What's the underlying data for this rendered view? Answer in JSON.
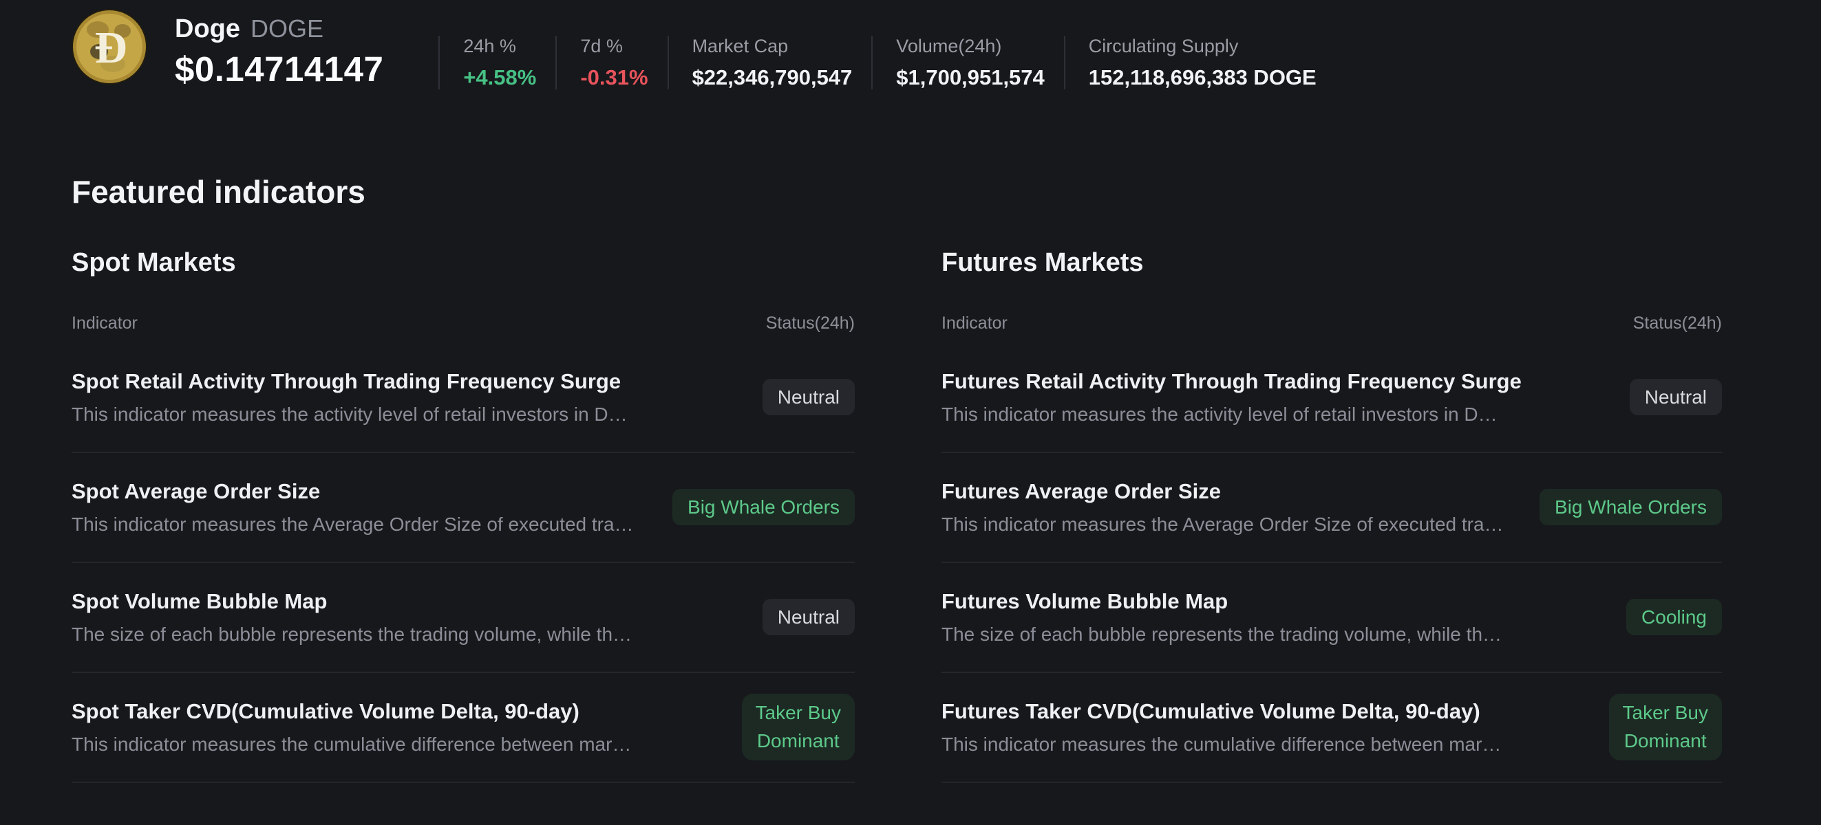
{
  "colors": {
    "background": "#17181c",
    "positive_green": "#47c185",
    "negative_red": "#e8545c",
    "badge_positive_text": "#5dc98a",
    "badge_positive_bg": "#1c2a23",
    "badge_neutral_text": "#d9dadd",
    "badge_neutral_bg": "#26272d",
    "doge_gold": "#c2a23c"
  },
  "header": {
    "coin_name": "Doge",
    "coin_symbol": "DOGE",
    "price": "$0.14714147",
    "logo_icon": "dogecoin-icon",
    "stats": [
      {
        "label": "24h %",
        "value": "+4.58%",
        "direction": "up"
      },
      {
        "label": "7d %",
        "value": "-0.31%",
        "direction": "down"
      },
      {
        "label": "Market Cap",
        "value": "$22,346,790,547",
        "direction": "none"
      },
      {
        "label": "Volume(24h)",
        "value": "$1,700,951,574",
        "direction": "none"
      },
      {
        "label": "Circulating Supply",
        "value": "152,118,696,383 DOGE",
        "direction": "none"
      }
    ]
  },
  "section_title": "Featured indicators",
  "tables": [
    {
      "title": "Spot Markets",
      "col_indicator": "Indicator",
      "col_status": "Status(24h)",
      "rows": [
        {
          "title": "Spot Retail Activity Through Trading Frequency Surge",
          "description": "This indicator measures the activity level of retail investors in D…",
          "status_lines": [
            "Neutral"
          ],
          "status_type": "neutral"
        },
        {
          "title": "Spot Average Order Size",
          "description": "This indicator measures the Average Order Size of executed tra…",
          "status_lines": [
            "Big Whale Orders"
          ],
          "status_type": "positive"
        },
        {
          "title": "Spot Volume Bubble Map",
          "description": "The size of each bubble represents the trading volume, while th…",
          "status_lines": [
            "Neutral"
          ],
          "status_type": "neutral"
        },
        {
          "title": "Spot Taker CVD(Cumulative Volume Delta, 90-day)",
          "description": "This indicator measures the cumulative difference between mar…",
          "status_lines": [
            "Taker Buy",
            "Dominant"
          ],
          "status_type": "positive"
        }
      ]
    },
    {
      "title": "Futures Markets",
      "col_indicator": "Indicator",
      "col_status": "Status(24h)",
      "rows": [
        {
          "title": "Futures Retail Activity Through Trading Frequency Surge",
          "description": "This indicator measures the activity level of retail investors in D…",
          "status_lines": [
            "Neutral"
          ],
          "status_type": "neutral"
        },
        {
          "title": "Futures Average Order Size",
          "description": "This indicator measures the Average Order Size of executed tra…",
          "status_lines": [
            "Big Whale Orders"
          ],
          "status_type": "positive"
        },
        {
          "title": "Futures Volume Bubble Map",
          "description": "The size of each bubble represents the trading volume, while th…",
          "status_lines": [
            "Cooling"
          ],
          "status_type": "positive"
        },
        {
          "title": "Futures Taker CVD(Cumulative Volume Delta, 90-day)",
          "description": "This indicator measures the cumulative difference between mar…",
          "status_lines": [
            "Taker Buy",
            "Dominant"
          ],
          "status_type": "positive"
        }
      ]
    }
  ]
}
